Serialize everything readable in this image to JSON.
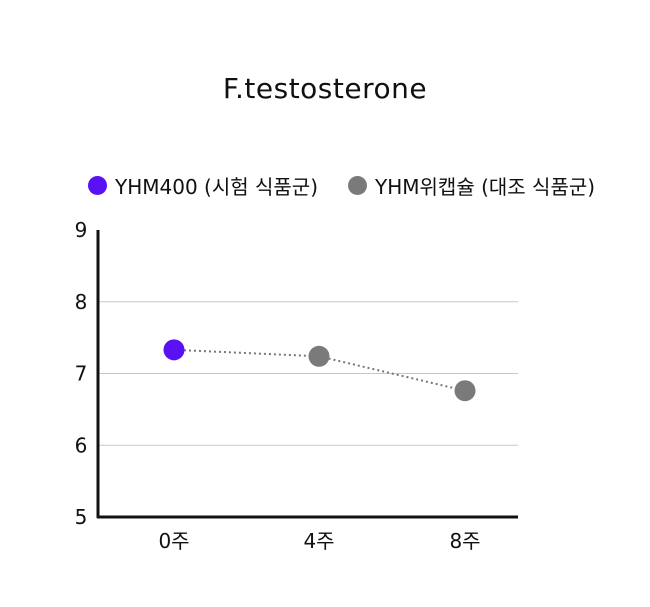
{
  "chart_data": {
    "type": "line",
    "title": "F.testosterone",
    "categories": [
      "0주",
      "4주",
      "8주"
    ],
    "ylim": [
      5,
      9
    ],
    "yticks": [
      "5",
      "6",
      "7",
      "8",
      "9"
    ],
    "grid": true,
    "legend_position": "top",
    "series": [
      {
        "name": "YHM400 (시험 식품군)",
        "values": [
          7.33,
          null,
          null
        ],
        "color": "#5a12f5"
      },
      {
        "name": "YHM위캡슐 (대조 식품군)",
        "values": [
          null,
          7.24,
          6.76
        ],
        "color": "#7a7a7a"
      }
    ],
    "connector_values": [
      7.33,
      7.24,
      6.76
    ],
    "connector_color": "#777777"
  }
}
